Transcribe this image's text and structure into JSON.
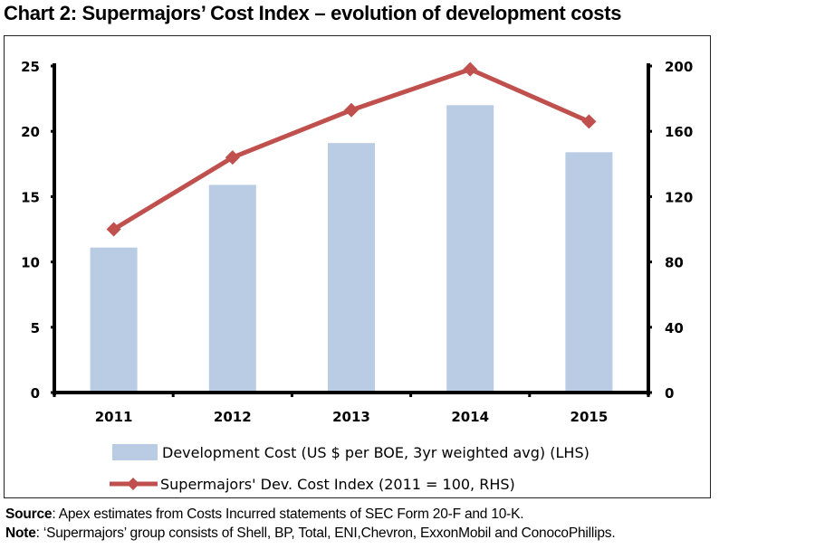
{
  "title": "Chart 2: Supermajors’ Cost Index – evolution of development costs",
  "footer": {
    "source_label": "Source",
    "source_text": ": Apex estimates from Costs Incurred statements of SEC Form 20-F and 10-K.",
    "note_label": "Note",
    "note_text": ": ‘Supermajors’ group consists of Shell, BP, Total, ENI,Chevron, ExxonMobil and ConocoPhillips."
  },
  "colors": {
    "bar": "#b9cce4",
    "line": "#c0504d",
    "axis": "#000000"
  },
  "chart_data": {
    "type": "bar",
    "title": "Chart 2: Supermajors’ Cost Index – evolution of development costs",
    "categories": [
      "2011",
      "2012",
      "2013",
      "2014",
      "2015"
    ],
    "series": [
      {
        "name": "Development Cost (US $ per BOE, 3yr weighted avg) (LHS)",
        "type": "bar",
        "axis": "left",
        "values": [
          11.1,
          15.9,
          19.1,
          22.0,
          18.4
        ]
      },
      {
        "name": "Supermajors' Dev. Cost Index (2011 = 100, RHS)",
        "type": "line",
        "axis": "right",
        "marker": "diamond",
        "values": [
          100,
          144,
          173,
          198,
          166
        ]
      }
    ],
    "y_left": {
      "min": 0,
      "max": 25,
      "ticks": [
        "0",
        "5",
        "10",
        "15",
        "20",
        "25"
      ]
    },
    "y_right": {
      "min": 0,
      "max": 200,
      "ticks": [
        "0",
        "40",
        "80",
        "120",
        "160",
        "200"
      ]
    },
    "xlabel": "",
    "ylabel": "",
    "grid": false,
    "legend": "bottom"
  }
}
